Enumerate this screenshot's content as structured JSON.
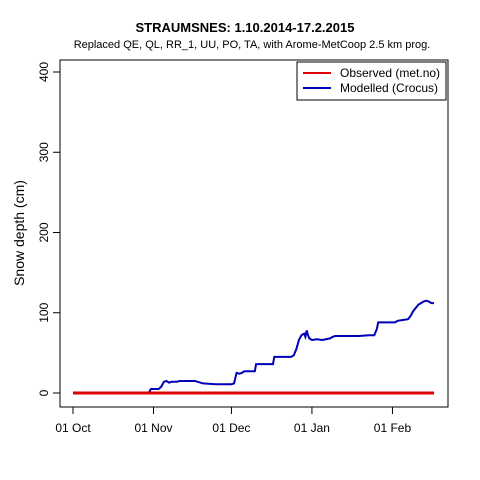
{
  "chart_data": {
    "type": "line",
    "title": "STRAUMSNES: 1.10.2014-17.2.2015",
    "subtitle": "Replaced QE, QL, RR_1, UU, PO, TA,  with Arome-MetCoop 2.5 km prog.",
    "xlabel": "",
    "ylabel": "Snow depth (cm)",
    "ylim": [
      0,
      400
    ],
    "y_ticks": [
      0,
      100,
      200,
      300,
      400
    ],
    "x_ticks": [
      {
        "day": 0,
        "label": "01 Oct"
      },
      {
        "day": 31,
        "label": "01 Nov"
      },
      {
        "day": 61,
        "label": "01 Dec"
      },
      {
        "day": 92,
        "label": "01 Jan"
      },
      {
        "day": 123,
        "label": "01 Feb"
      }
    ],
    "xlim_days": [
      0,
      139
    ],
    "legend_position": "top-right",
    "grid": false,
    "series": [
      {
        "name": "Observed (met.no)",
        "color": "#dd0000",
        "points": [
          [
            0,
            0
          ],
          [
            139,
            0
          ]
        ]
      },
      {
        "name": "Modelled (Crocus)",
        "color": "#0000bb",
        "points": [
          [
            0,
            0
          ],
          [
            29,
            0
          ],
          [
            29.5,
            2
          ],
          [
            30,
            5
          ],
          [
            33,
            5
          ],
          [
            34,
            8
          ],
          [
            35,
            14
          ],
          [
            36,
            15
          ],
          [
            37,
            13
          ],
          [
            38,
            14
          ],
          [
            40,
            14
          ],
          [
            41,
            15
          ],
          [
            47,
            15
          ],
          [
            48,
            14
          ],
          [
            50,
            12
          ],
          [
            55,
            11
          ],
          [
            59,
            11
          ],
          [
            61,
            11
          ],
          [
            62,
            12
          ],
          [
            63,
            25
          ],
          [
            64,
            24
          ],
          [
            65,
            25
          ],
          [
            66,
            27
          ],
          [
            70,
            27
          ],
          [
            70.5,
            36
          ],
          [
            77,
            36
          ],
          [
            77.5,
            45
          ],
          [
            84,
            45
          ],
          [
            85,
            47
          ],
          [
            86,
            55
          ],
          [
            87,
            66
          ],
          [
            88,
            72
          ],
          [
            89,
            74
          ],
          [
            89.5,
            70
          ],
          [
            90,
            78
          ],
          [
            90.5,
            72
          ],
          [
            91,
            68
          ],
          [
            92,
            66
          ],
          [
            94,
            67
          ],
          [
            96,
            66
          ],
          [
            99,
            68
          ],
          [
            100,
            70
          ],
          [
            101,
            71
          ],
          [
            110,
            71
          ],
          [
            114,
            72
          ],
          [
            116,
            72
          ],
          [
            117,
            80
          ],
          [
            117.5,
            88
          ],
          [
            119,
            88
          ],
          [
            124,
            88
          ],
          [
            125,
            90
          ],
          [
            127,
            91
          ],
          [
            129,
            92
          ],
          [
            130,
            96
          ],
          [
            131,
            102
          ],
          [
            132,
            106
          ],
          [
            133,
            110
          ],
          [
            134,
            112
          ],
          [
            135,
            114
          ],
          [
            136,
            115
          ],
          [
            137,
            114
          ],
          [
            138,
            112
          ],
          [
            139,
            112
          ]
        ]
      }
    ]
  }
}
